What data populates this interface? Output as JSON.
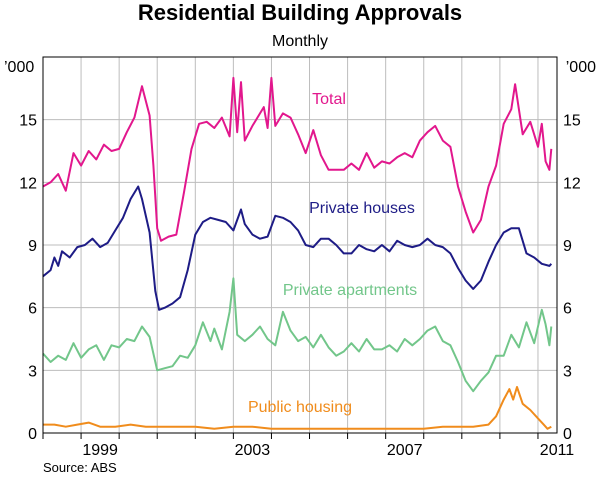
{
  "chart_data": {
    "type": "line",
    "title": "Residential Building Approvals",
    "subtitle": "Monthly",
    "ylabel": "’000",
    "ylim": [
      0,
      18
    ],
    "yticks": [
      0,
      3,
      6,
      9,
      12,
      15
    ],
    "xlim": [
      1997.5,
      2011.0
    ],
    "xticks": [
      1999,
      2003,
      2007,
      2011
    ],
    "x_gridlines": [
      1997.5,
      1998.5,
      1999.5,
      2000.5,
      2001.5,
      2002.5,
      2003.5,
      2004.5,
      2005.5,
      2006.5,
      2007.5,
      2008.5,
      2009.5,
      2010.5
    ],
    "source": "Source: ABS",
    "series": [
      {
        "name": "Total",
        "color": "#e2178d",
        "points": [
          [
            1997.5,
            11.8
          ],
          [
            1997.7,
            12.0
          ],
          [
            1997.9,
            12.4
          ],
          [
            1998.1,
            11.6
          ],
          [
            1998.3,
            13.4
          ],
          [
            1998.5,
            12.8
          ],
          [
            1998.7,
            13.5
          ],
          [
            1998.9,
            13.1
          ],
          [
            1999.1,
            13.8
          ],
          [
            1999.3,
            13.5
          ],
          [
            1999.5,
            13.6
          ],
          [
            1999.7,
            14.4
          ],
          [
            1999.9,
            15.1
          ],
          [
            2000.1,
            16.6
          ],
          [
            2000.3,
            15.2
          ],
          [
            2000.4,
            12.8
          ],
          [
            2000.5,
            9.8
          ],
          [
            2000.6,
            9.2
          ],
          [
            2000.8,
            9.4
          ],
          [
            2001.0,
            9.5
          ],
          [
            2001.2,
            11.5
          ],
          [
            2001.4,
            13.6
          ],
          [
            2001.6,
            14.8
          ],
          [
            2001.8,
            14.9
          ],
          [
            2002.0,
            14.6
          ],
          [
            2002.2,
            15.1
          ],
          [
            2002.4,
            14.2
          ],
          [
            2002.5,
            17.0
          ],
          [
            2002.6,
            14.4
          ],
          [
            2002.7,
            16.8
          ],
          [
            2002.8,
            14.0
          ],
          [
            2003.0,
            14.7
          ],
          [
            2003.2,
            15.3
          ],
          [
            2003.3,
            15.6
          ],
          [
            2003.4,
            14.6
          ],
          [
            2003.5,
            17.0
          ],
          [
            2003.6,
            14.7
          ],
          [
            2003.8,
            15.3
          ],
          [
            2004.0,
            15.1
          ],
          [
            2004.2,
            14.3
          ],
          [
            2004.4,
            13.4
          ],
          [
            2004.6,
            14.5
          ],
          [
            2004.8,
            13.3
          ],
          [
            2005.0,
            12.6
          ],
          [
            2005.2,
            12.6
          ],
          [
            2005.4,
            12.6
          ],
          [
            2005.6,
            12.9
          ],
          [
            2005.8,
            12.6
          ],
          [
            2006.0,
            13.4
          ],
          [
            2006.2,
            12.7
          ],
          [
            2006.4,
            13.0
          ],
          [
            2006.6,
            12.9
          ],
          [
            2006.8,
            13.2
          ],
          [
            2007.0,
            13.4
          ],
          [
            2007.2,
            13.2
          ],
          [
            2007.4,
            14.0
          ],
          [
            2007.6,
            14.4
          ],
          [
            2007.8,
            14.7
          ],
          [
            2008.0,
            14.0
          ],
          [
            2008.2,
            13.7
          ],
          [
            2008.4,
            11.8
          ],
          [
            2008.6,
            10.6
          ],
          [
            2008.8,
            9.6
          ],
          [
            2009.0,
            10.2
          ],
          [
            2009.2,
            11.8
          ],
          [
            2009.4,
            12.8
          ],
          [
            2009.6,
            14.8
          ],
          [
            2009.8,
            15.5
          ],
          [
            2009.9,
            16.7
          ],
          [
            2010.1,
            14.3
          ],
          [
            2010.3,
            14.9
          ],
          [
            2010.5,
            13.7
          ],
          [
            2010.6,
            14.8
          ],
          [
            2010.7,
            13.0
          ],
          [
            2010.8,
            12.6
          ],
          [
            2010.85,
            13.6
          ]
        ]
      },
      {
        "name": "Private houses",
        "color": "#1e1c86",
        "points": [
          [
            1997.5,
            7.5
          ],
          [
            1997.7,
            7.8
          ],
          [
            1997.8,
            8.4
          ],
          [
            1997.9,
            8.0
          ],
          [
            1998.0,
            8.7
          ],
          [
            1998.2,
            8.4
          ],
          [
            1998.4,
            8.9
          ],
          [
            1998.6,
            9.0
          ],
          [
            1998.8,
            9.3
          ],
          [
            1999.0,
            8.9
          ],
          [
            1999.2,
            9.1
          ],
          [
            1999.4,
            9.7
          ],
          [
            1999.6,
            10.3
          ],
          [
            1999.8,
            11.2
          ],
          [
            2000.0,
            11.8
          ],
          [
            2000.1,
            11.2
          ],
          [
            2000.3,
            9.6
          ],
          [
            2000.45,
            6.8
          ],
          [
            2000.55,
            5.9
          ],
          [
            2000.7,
            6.0
          ],
          [
            2000.9,
            6.2
          ],
          [
            2001.1,
            6.5
          ],
          [
            2001.3,
            7.8
          ],
          [
            2001.5,
            9.5
          ],
          [
            2001.7,
            10.1
          ],
          [
            2001.9,
            10.3
          ],
          [
            2002.1,
            10.2
          ],
          [
            2002.3,
            10.1
          ],
          [
            2002.5,
            9.7
          ],
          [
            2002.7,
            10.7
          ],
          [
            2002.8,
            10.0
          ],
          [
            2003.0,
            9.5
          ],
          [
            2003.2,
            9.3
          ],
          [
            2003.4,
            9.4
          ],
          [
            2003.6,
            10.4
          ],
          [
            2003.8,
            10.3
          ],
          [
            2004.0,
            10.1
          ],
          [
            2004.2,
            9.7
          ],
          [
            2004.4,
            9.0
          ],
          [
            2004.6,
            8.9
          ],
          [
            2004.8,
            9.3
          ],
          [
            2005.0,
            9.3
          ],
          [
            2005.2,
            9.0
          ],
          [
            2005.4,
            8.6
          ],
          [
            2005.6,
            8.6
          ],
          [
            2005.8,
            9.0
          ],
          [
            2006.0,
            8.8
          ],
          [
            2006.2,
            8.7
          ],
          [
            2006.4,
            9.0
          ],
          [
            2006.6,
            8.7
          ],
          [
            2006.8,
            9.2
          ],
          [
            2007.0,
            9.0
          ],
          [
            2007.2,
            8.9
          ],
          [
            2007.4,
            9.0
          ],
          [
            2007.6,
            9.3
          ],
          [
            2007.8,
            9.0
          ],
          [
            2008.0,
            8.9
          ],
          [
            2008.2,
            8.6
          ],
          [
            2008.4,
            7.9
          ],
          [
            2008.6,
            7.3
          ],
          [
            2008.8,
            6.9
          ],
          [
            2009.0,
            7.3
          ],
          [
            2009.2,
            8.2
          ],
          [
            2009.4,
            9.0
          ],
          [
            2009.6,
            9.6
          ],
          [
            2009.8,
            9.8
          ],
          [
            2010.0,
            9.8
          ],
          [
            2010.2,
            8.6
          ],
          [
            2010.4,
            8.4
          ],
          [
            2010.6,
            8.1
          ],
          [
            2010.8,
            8.0
          ],
          [
            2010.85,
            8.1
          ]
        ]
      },
      {
        "name": "Private apartments",
        "color": "#72c68a",
        "points": [
          [
            1997.5,
            3.8
          ],
          [
            1997.7,
            3.4
          ],
          [
            1997.9,
            3.7
          ],
          [
            1998.1,
            3.5
          ],
          [
            1998.3,
            4.3
          ],
          [
            1998.5,
            3.6
          ],
          [
            1998.7,
            4.0
          ],
          [
            1998.9,
            4.2
          ],
          [
            1999.1,
            3.5
          ],
          [
            1999.3,
            4.2
          ],
          [
            1999.5,
            4.1
          ],
          [
            1999.7,
            4.5
          ],
          [
            1999.9,
            4.4
          ],
          [
            2000.1,
            5.1
          ],
          [
            2000.3,
            4.6
          ],
          [
            2000.5,
            3.0
          ],
          [
            2000.7,
            3.1
          ],
          [
            2000.9,
            3.2
          ],
          [
            2001.1,
            3.7
          ],
          [
            2001.3,
            3.6
          ],
          [
            2001.5,
            4.2
          ],
          [
            2001.7,
            5.3
          ],
          [
            2001.9,
            4.4
          ],
          [
            2002.0,
            5.0
          ],
          [
            2002.2,
            4.0
          ],
          [
            2002.4,
            5.8
          ],
          [
            2002.5,
            7.4
          ],
          [
            2002.6,
            4.7
          ],
          [
            2002.8,
            4.4
          ],
          [
            2003.0,
            4.7
          ],
          [
            2003.2,
            5.1
          ],
          [
            2003.4,
            4.5
          ],
          [
            2003.6,
            4.2
          ],
          [
            2003.8,
            5.8
          ],
          [
            2004.0,
            4.9
          ],
          [
            2004.2,
            4.4
          ],
          [
            2004.4,
            4.6
          ],
          [
            2004.6,
            4.1
          ],
          [
            2004.8,
            4.7
          ],
          [
            2005.0,
            4.1
          ],
          [
            2005.2,
            3.7
          ],
          [
            2005.4,
            3.9
          ],
          [
            2005.6,
            4.3
          ],
          [
            2005.8,
            3.9
          ],
          [
            2006.0,
            4.5
          ],
          [
            2006.2,
            4.0
          ],
          [
            2006.4,
            4.0
          ],
          [
            2006.6,
            4.2
          ],
          [
            2006.8,
            3.9
          ],
          [
            2007.0,
            4.5
          ],
          [
            2007.2,
            4.2
          ],
          [
            2007.4,
            4.5
          ],
          [
            2007.6,
            4.9
          ],
          [
            2007.8,
            5.1
          ],
          [
            2008.0,
            4.4
          ],
          [
            2008.2,
            4.2
          ],
          [
            2008.4,
            3.4
          ],
          [
            2008.6,
            2.5
          ],
          [
            2008.8,
            2.0
          ],
          [
            2009.0,
            2.5
          ],
          [
            2009.2,
            2.9
          ],
          [
            2009.4,
            3.7
          ],
          [
            2009.6,
            3.7
          ],
          [
            2009.8,
            4.7
          ],
          [
            2010.0,
            4.1
          ],
          [
            2010.2,
            5.3
          ],
          [
            2010.4,
            4.3
          ],
          [
            2010.6,
            5.9
          ],
          [
            2010.7,
            5.2
          ],
          [
            2010.8,
            4.2
          ],
          [
            2010.85,
            5.1
          ]
        ]
      },
      {
        "name": "Public housing",
        "color": "#f08c1c",
        "points": [
          [
            1997.5,
            0.4
          ],
          [
            1997.8,
            0.4
          ],
          [
            1998.1,
            0.3
          ],
          [
            1998.4,
            0.4
          ],
          [
            1998.7,
            0.5
          ],
          [
            1999.0,
            0.3
          ],
          [
            1999.4,
            0.3
          ],
          [
            1999.8,
            0.4
          ],
          [
            2000.2,
            0.3
          ],
          [
            2000.6,
            0.3
          ],
          [
            2001.0,
            0.3
          ],
          [
            2001.5,
            0.3
          ],
          [
            2002.0,
            0.2
          ],
          [
            2002.5,
            0.3
          ],
          [
            2003.0,
            0.3
          ],
          [
            2003.5,
            0.2
          ],
          [
            2004.0,
            0.2
          ],
          [
            2004.5,
            0.2
          ],
          [
            2005.0,
            0.2
          ],
          [
            2005.5,
            0.2
          ],
          [
            2006.0,
            0.2
          ],
          [
            2006.5,
            0.2
          ],
          [
            2007.0,
            0.2
          ],
          [
            2007.5,
            0.2
          ],
          [
            2008.0,
            0.3
          ],
          [
            2008.4,
            0.3
          ],
          [
            2008.8,
            0.3
          ],
          [
            2009.2,
            0.4
          ],
          [
            2009.4,
            0.8
          ],
          [
            2009.6,
            1.6
          ],
          [
            2009.75,
            2.1
          ],
          [
            2009.85,
            1.6
          ],
          [
            2009.95,
            2.2
          ],
          [
            2010.1,
            1.4
          ],
          [
            2010.3,
            1.1
          ],
          [
            2010.5,
            0.7
          ],
          [
            2010.65,
            0.4
          ],
          [
            2010.75,
            0.2
          ],
          [
            2010.85,
            0.3
          ]
        ]
      }
    ]
  }
}
